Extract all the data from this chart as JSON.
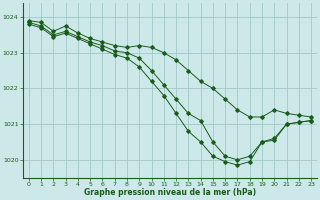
{
  "title": "Graphe pression niveau de la mer (hPa)",
  "bg_color": "#cde8e8",
  "grid_color": "#a0c8c8",
  "line_color": "#1a5c1a",
  "xlim": [
    -0.5,
    23.5
  ],
  "ylim": [
    1019.5,
    1024.4
  ],
  "xticks": [
    0,
    1,
    2,
    3,
    4,
    5,
    6,
    7,
    8,
    9,
    10,
    11,
    12,
    13,
    14,
    15,
    16,
    17,
    18,
    19,
    20,
    21,
    22,
    23
  ],
  "yticks": [
    1020,
    1021,
    1022,
    1023,
    1024
  ],
  "line1": {
    "x": [
      0,
      1,
      2,
      3,
      4,
      5,
      6,
      7,
      8,
      9,
      10,
      11,
      12,
      13,
      14,
      15,
      16,
      17,
      18,
      19,
      20,
      21,
      22,
      23
    ],
    "y": [
      1023.9,
      1023.85,
      1023.6,
      1023.75,
      1023.55,
      1023.4,
      1023.3,
      1023.2,
      1023.15,
      1023.2,
      1023.15,
      1023.0,
      1022.8,
      1022.5,
      1022.2,
      1022.0,
      1021.7,
      1021.4,
      1021.2,
      1021.2,
      1021.4,
      1021.3,
      1021.25,
      1021.2
    ]
  },
  "line2": {
    "x": [
      0,
      1,
      2,
      3,
      4,
      5,
      6,
      7,
      8,
      9,
      10,
      11,
      12,
      13,
      14,
      15,
      16,
      17,
      18,
      19,
      20,
      21,
      22,
      23
    ],
    "y": [
      1023.85,
      1023.75,
      1023.5,
      1023.6,
      1023.45,
      1023.3,
      1023.2,
      1023.05,
      1023.0,
      1022.85,
      1022.5,
      1022.1,
      1021.7,
      1021.3,
      1021.1,
      1020.5,
      1020.1,
      1020.0,
      1020.1,
      1020.5,
      1020.6,
      1021.0,
      1021.05,
      1021.1
    ]
  },
  "line3": {
    "x": [
      0,
      1,
      2,
      3,
      4,
      5,
      6,
      7,
      8,
      9,
      10,
      11,
      12,
      13,
      14,
      15,
      16,
      17,
      18,
      19,
      20,
      21,
      22,
      23
    ],
    "y": [
      1023.8,
      1023.7,
      1023.45,
      1023.55,
      1023.4,
      1023.25,
      1023.1,
      1022.95,
      1022.85,
      1022.6,
      1022.2,
      1021.8,
      1021.3,
      1020.8,
      1020.5,
      1020.1,
      1019.95,
      1019.85,
      1019.95,
      1020.5,
      1020.55,
      1021.0,
      1021.05,
      1021.1
    ]
  }
}
